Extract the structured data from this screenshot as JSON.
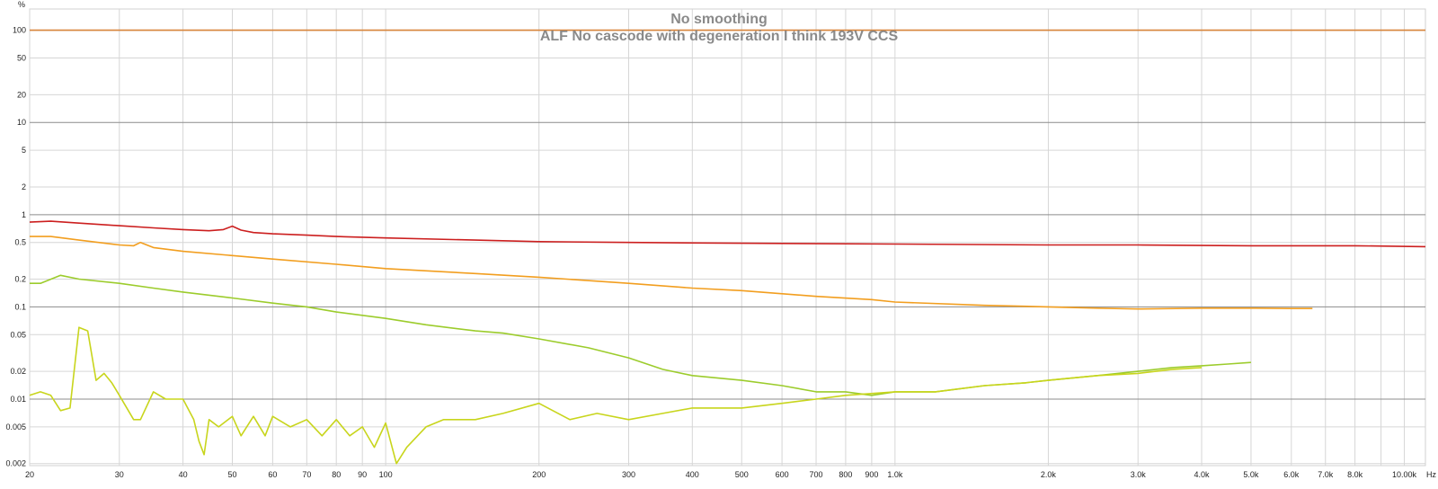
{
  "chart_data": {
    "type": "line",
    "title": "No smoothing",
    "subtitle": "ALF No cascode with degeneration I think 193V CCS",
    "ylabel": "%",
    "xlabel": "Hz",
    "x_scale": "log",
    "y_scale": "log",
    "xlim": [
      20,
      11000
    ],
    "ylim": [
      0.0019,
      170
    ],
    "grid": true,
    "x_ticks": [
      {
        "value": 20,
        "label": "20"
      },
      {
        "value": 30,
        "label": "30"
      },
      {
        "value": 40,
        "label": "40"
      },
      {
        "value": 50,
        "label": "50"
      },
      {
        "value": 60,
        "label": "60"
      },
      {
        "value": 70,
        "label": "70"
      },
      {
        "value": 80,
        "label": "80"
      },
      {
        "value": 90,
        "label": "90"
      },
      {
        "value": 100,
        "label": "100"
      },
      {
        "value": 200,
        "label": "200"
      },
      {
        "value": 300,
        "label": "300"
      },
      {
        "value": 400,
        "label": "400"
      },
      {
        "value": 500,
        "label": "500"
      },
      {
        "value": 600,
        "label": "600"
      },
      {
        "value": 700,
        "label": "700"
      },
      {
        "value": 800,
        "label": "800"
      },
      {
        "value": 900,
        "label": "900"
      },
      {
        "value": 1000,
        "label": "1.0k"
      },
      {
        "value": 2000,
        "label": "2.0k"
      },
      {
        "value": 3000,
        "label": "3.0k"
      },
      {
        "value": 4000,
        "label": "4.0k"
      },
      {
        "value": 5000,
        "label": "5.0k"
      },
      {
        "value": 6000,
        "label": "6.0k"
      },
      {
        "value": 7000,
        "label": "7.0k"
      },
      {
        "value": 8000,
        "label": "8.0k"
      },
      {
        "value": 10000,
        "label": "10.00k"
      }
    ],
    "y_ticks": [
      {
        "value": 100,
        "label": "100"
      },
      {
        "value": 50,
        "label": "50"
      },
      {
        "value": 20,
        "label": "20"
      },
      {
        "value": 10,
        "label": "10"
      },
      {
        "value": 5,
        "label": "5"
      },
      {
        "value": 2,
        "label": "2"
      },
      {
        "value": 1,
        "label": "1"
      },
      {
        "value": 0.5,
        "label": "0.5"
      },
      {
        "value": 0.2,
        "label": "0.2"
      },
      {
        "value": 0.1,
        "label": "0.1"
      },
      {
        "value": 0.05,
        "label": "0.05"
      },
      {
        "value": 0.02,
        "label": "0.02"
      },
      {
        "value": 0.01,
        "label": "0.01"
      },
      {
        "value": 0.005,
        "label": "0.005"
      },
      {
        "value": 0.002,
        "label": "0.002"
      }
    ],
    "series": [
      {
        "color": "#d9853b",
        "x": [
          20,
          11000
        ],
        "y": [
          100,
          100
        ]
      },
      {
        "color": "#cc1f1f",
        "x": [
          20,
          22,
          25,
          30,
          35,
          40,
          45,
          48,
          50,
          52,
          55,
          60,
          70,
          80,
          100,
          150,
          200,
          300,
          500,
          1000,
          2000,
          3000,
          5000,
          8000,
          11000
        ],
        "y": [
          0.83,
          0.85,
          0.81,
          0.76,
          0.72,
          0.69,
          0.67,
          0.69,
          0.75,
          0.68,
          0.64,
          0.62,
          0.6,
          0.58,
          0.56,
          0.53,
          0.51,
          0.5,
          0.49,
          0.48,
          0.47,
          0.47,
          0.46,
          0.46,
          0.45
        ]
      },
      {
        "color": "#f29e1f",
        "x": [
          20,
          22,
          25,
          30,
          32,
          33,
          35,
          40,
          50,
          60,
          80,
          100,
          150,
          200,
          300,
          400,
          500,
          700,
          900,
          1000,
          1500,
          2000,
          2500,
          3000,
          4000,
          5000,
          6000,
          6600
        ],
        "y": [
          0.58,
          0.58,
          0.53,
          0.47,
          0.46,
          0.5,
          0.44,
          0.4,
          0.36,
          0.33,
          0.29,
          0.26,
          0.23,
          0.21,
          0.18,
          0.16,
          0.15,
          0.13,
          0.12,
          0.113,
          0.104,
          0.1,
          0.097,
          0.095,
          0.097,
          0.097,
          0.096,
          0.096
        ]
      },
      {
        "color": "#9ccc2c",
        "x": [
          20,
          21,
          23,
          25,
          30,
          35,
          40,
          50,
          60,
          70,
          80,
          100,
          120,
          150,
          170,
          200,
          250,
          300,
          350,
          400,
          500,
          600,
          700,
          800,
          900,
          1000,
          1200,
          1500,
          1800,
          2000,
          2500,
          3000,
          3500,
          4000,
          4500,
          5000
        ],
        "y": [
          0.18,
          0.18,
          0.22,
          0.2,
          0.18,
          0.16,
          0.145,
          0.125,
          0.11,
          0.1,
          0.088,
          0.075,
          0.064,
          0.055,
          0.052,
          0.045,
          0.036,
          0.028,
          0.021,
          0.018,
          0.016,
          0.014,
          0.012,
          0.012,
          0.011,
          0.012,
          0.012,
          0.014,
          0.015,
          0.016,
          0.018,
          0.02,
          0.022,
          0.023,
          0.024,
          0.025
        ]
      },
      {
        "color": "#c8d51c",
        "x": [
          20,
          21,
          22,
          23,
          24,
          25,
          26,
          27,
          28,
          29,
          30,
          32,
          33,
          35,
          37,
          40,
          42,
          43,
          44,
          45,
          47,
          50,
          52,
          55,
          58,
          60,
          65,
          70,
          75,
          80,
          85,
          90,
          95,
          100,
          105,
          110,
          120,
          130,
          150,
          170,
          200,
          230,
          260,
          300,
          350,
          400,
          500,
          600,
          700,
          800,
          1000,
          1200,
          1500,
          1800,
          2000,
          2500,
          3000,
          3500,
          4000
        ],
        "y": [
          0.011,
          0.012,
          0.011,
          0.0075,
          0.008,
          0.06,
          0.055,
          0.016,
          0.019,
          0.015,
          0.011,
          0.006,
          0.006,
          0.012,
          0.01,
          0.01,
          0.006,
          0.0035,
          0.0025,
          0.006,
          0.005,
          0.0065,
          0.004,
          0.0065,
          0.004,
          0.0065,
          0.005,
          0.006,
          0.004,
          0.006,
          0.004,
          0.005,
          0.003,
          0.0055,
          0.002,
          0.003,
          0.005,
          0.006,
          0.006,
          0.007,
          0.009,
          0.006,
          0.007,
          0.006,
          0.007,
          0.008,
          0.008,
          0.009,
          0.01,
          0.011,
          0.012,
          0.012,
          0.014,
          0.015,
          0.016,
          0.018,
          0.019,
          0.021,
          0.022
        ]
      }
    ]
  }
}
